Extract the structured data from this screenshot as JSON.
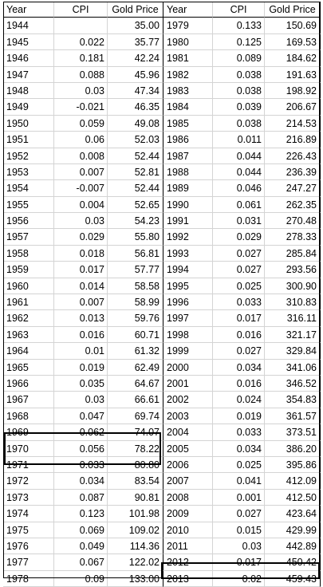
{
  "headers": [
    "Year",
    "CPI",
    "Gold Price",
    "Year",
    "CPI",
    "Gold Price"
  ],
  "left_rows": [
    [
      "1944",
      "",
      "35.00"
    ],
    [
      "1945",
      "0.022",
      "35.77"
    ],
    [
      "1946",
      "0.181",
      "42.24"
    ],
    [
      "1947",
      "0.088",
      "45.96"
    ],
    [
      "1948",
      "0.03",
      "47.34"
    ],
    [
      "1949",
      "-0.021",
      "46.35"
    ],
    [
      "1950",
      "0.059",
      "49.08"
    ],
    [
      "1951",
      "0.06",
      "52.03"
    ],
    [
      "1952",
      "0.008",
      "52.44"
    ],
    [
      "1953",
      "0.007",
      "52.81"
    ],
    [
      "1954",
      "-0.007",
      "52.44"
    ],
    [
      "1955",
      "0.004",
      "52.65"
    ],
    [
      "1956",
      "0.03",
      "54.23"
    ],
    [
      "1957",
      "0.029",
      "55.80"
    ],
    [
      "1958",
      "0.018",
      "56.81"
    ],
    [
      "1959",
      "0.017",
      "57.77"
    ],
    [
      "1960",
      "0.014",
      "58.58"
    ],
    [
      "1961",
      "0.007",
      "58.99"
    ],
    [
      "1962",
      "0.013",
      "59.76"
    ],
    [
      "1963",
      "0.016",
      "60.71"
    ],
    [
      "1964",
      "0.01",
      "61.32"
    ],
    [
      "1965",
      "0.019",
      "62.49"
    ],
    [
      "1966",
      "0.035",
      "64.67"
    ],
    [
      "1967",
      "0.03",
      "66.61"
    ],
    [
      "1968",
      "0.047",
      "69.74"
    ],
    [
      "1969",
      "0.062",
      "74.07"
    ],
    [
      "1970",
      "0.056",
      "78.22"
    ],
    [
      "1971",
      "0.033",
      "80.80"
    ],
    [
      "1972",
      "0.034",
      "83.54"
    ],
    [
      "1973",
      "0.087",
      "90.81"
    ],
    [
      "1974",
      "0.123",
      "101.98"
    ],
    [
      "1975",
      "0.069",
      "109.02"
    ],
    [
      "1976",
      "0.049",
      "114.36"
    ],
    [
      "1977",
      "0.067",
      "122.02"
    ],
    [
      "1978",
      "0.09",
      "133.00"
    ]
  ],
  "right_rows": [
    [
      "1979",
      "0.133",
      "150.69"
    ],
    [
      "1980",
      "0.125",
      "169.53"
    ],
    [
      "1981",
      "0.089",
      "184.62"
    ],
    [
      "1982",
      "0.038",
      "191.63"
    ],
    [
      "1983",
      "0.038",
      "198.92"
    ],
    [
      "1984",
      "0.039",
      "206.67"
    ],
    [
      "1985",
      "0.038",
      "214.53"
    ],
    [
      "1986",
      "0.011",
      "216.89"
    ],
    [
      "1987",
      "0.044",
      "226.43"
    ],
    [
      "1988",
      "0.044",
      "236.39"
    ],
    [
      "1989",
      "0.046",
      "247.27"
    ],
    [
      "1990",
      "0.061",
      "262.35"
    ],
    [
      "1991",
      "0.031",
      "270.48"
    ],
    [
      "1992",
      "0.029",
      "278.33"
    ],
    [
      "1993",
      "0.027",
      "285.84"
    ],
    [
      "1994",
      "0.027",
      "293.56"
    ],
    [
      "1995",
      "0.025",
      "300.90"
    ],
    [
      "1996",
      "0.033",
      "310.83"
    ],
    [
      "1997",
      "0.017",
      "316.11"
    ],
    [
      "1998",
      "0.016",
      "321.17"
    ],
    [
      "1999",
      "0.027",
      "329.84"
    ],
    [
      "2000",
      "0.034",
      "341.06"
    ],
    [
      "2001",
      "0.016",
      "346.52"
    ],
    [
      "2002",
      "0.024",
      "354.83"
    ],
    [
      "2003",
      "0.019",
      "361.57"
    ],
    [
      "2004",
      "0.033",
      "373.51"
    ],
    [
      "2005",
      "0.034",
      "386.20"
    ],
    [
      "2006",
      "0.025",
      "395.86"
    ],
    [
      "2007",
      "0.041",
      "412.09"
    ],
    [
      "2008",
      "0.001",
      "412.50"
    ],
    [
      "2009",
      "0.027",
      "423.64"
    ],
    [
      "2010",
      "0.015",
      "429.99"
    ],
    [
      "2011",
      "0.03",
      "442.89"
    ],
    [
      "2012",
      "0.017",
      "450.42"
    ],
    [
      "2013",
      "0.02",
      "459.43"
    ]
  ]
}
